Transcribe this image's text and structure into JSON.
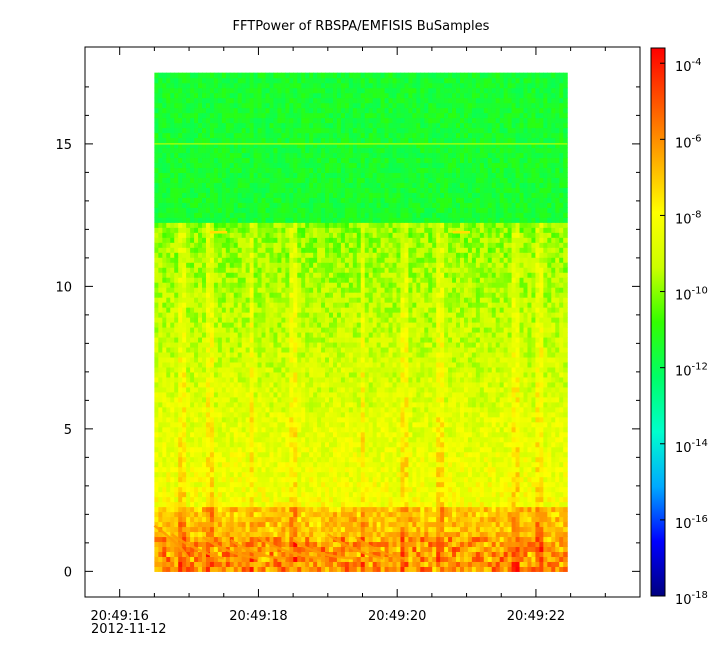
{
  "chart_data": {
    "type": "heatmap",
    "title": "FFTPower of RBSPA/EMFISIS  BuSamples",
    "xlabel": "",
    "ylabel": "",
    "x_axis": {
      "type": "time",
      "date": "2012-11-12",
      "ticks": [
        {
          "value": 16,
          "label": "20:49:16"
        },
        {
          "value": 18,
          "label": "20:49:18"
        },
        {
          "value": 20,
          "label": "20:49:20"
        },
        {
          "value": 22,
          "label": "20:49:22"
        }
      ],
      "minor_ticks": [
        16.5,
        17,
        17.5,
        18.5,
        19,
        19.5,
        20.5,
        21,
        21.5,
        22.5,
        23
      ],
      "range": [
        15.5,
        23.5
      ],
      "data_range": [
        16.5,
        22.45
      ]
    },
    "y_axis": {
      "ticks": [
        0,
        5,
        10,
        15
      ],
      "minor_ticks": [
        1,
        2,
        3,
        4,
        6,
        7,
        8,
        9,
        11,
        12,
        13,
        14,
        16,
        17
      ],
      "range": [
        -0.9,
        18.4
      ],
      "data_range": [
        0,
        17.5
      ]
    },
    "colorbar": {
      "scale": "log",
      "range": [
        -18,
        -3.6
      ],
      "ticks": [
        {
          "exp": -4,
          "base": "10",
          "sup": "-4"
        },
        {
          "exp": -6,
          "base": "10",
          "sup": "-6"
        },
        {
          "exp": -8,
          "base": "10",
          "sup": "-8"
        },
        {
          "exp": -10,
          "base": "10",
          "sup": "-10"
        },
        {
          "exp": -12,
          "base": "10",
          "sup": "-12"
        },
        {
          "exp": -14,
          "base": "10",
          "sup": "-14"
        },
        {
          "exp": -16,
          "base": "10",
          "sup": "-16"
        },
        {
          "exp": -18,
          "base": "10",
          "sup": "-18"
        }
      ],
      "colormap": [
        "#00007f",
        "#0000ff",
        "#00aaff",
        "#00ffcc",
        "#00ff66",
        "#33ff00",
        "#ccff00",
        "#ffff00",
        "#ffaa00",
        "#ff5500",
        "#ff0000"
      ]
    },
    "features": {
      "background_level_high_freq": -11.5,
      "background_level_low_freq": -8.5,
      "transition_y": 12.3,
      "line_at_y": 15
    }
  }
}
